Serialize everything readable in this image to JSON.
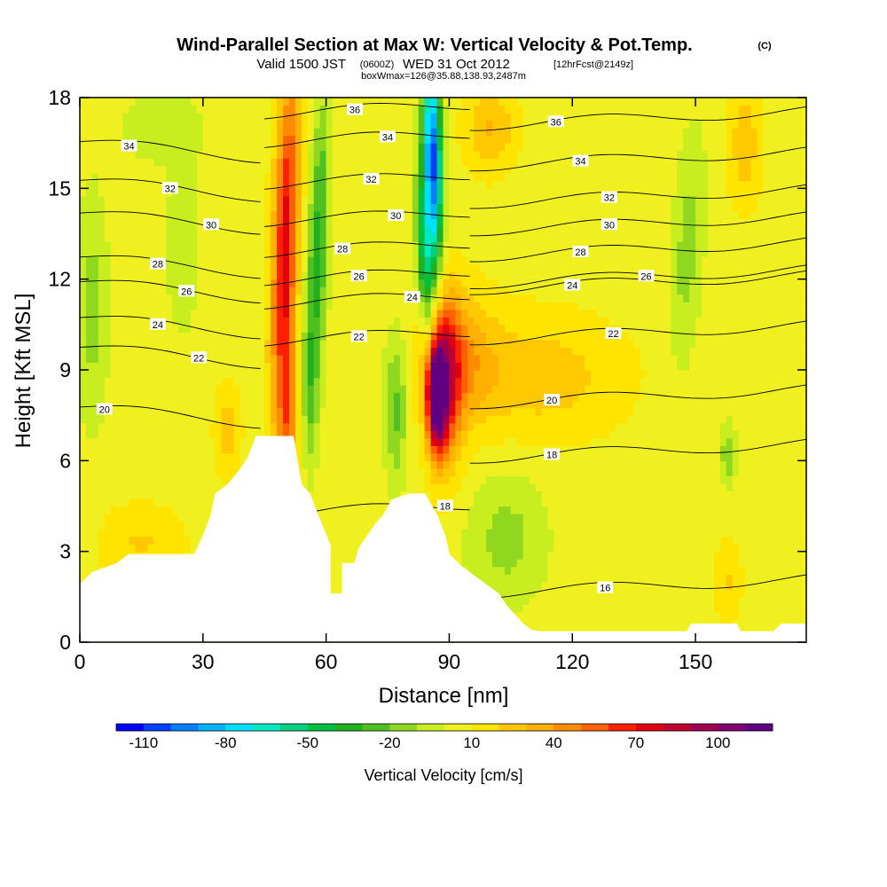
{
  "chart_data": {
    "type": "heatmap",
    "title": "Wind-Parallel Section at Max W: Vertical Velocity & Pot.Temp.",
    "title_mark": "(C)",
    "subtitle_valid": "Valid 1500 JST",
    "subtitle_utc": "(0600Z)",
    "subtitle_date": "WED 31 Oct 2012",
    "subtitle_fcst": "[12hrFcst@2149z]",
    "subtitle_box": "boxWmax=126@35.88,138.93,2487m",
    "xlabel": "Distance [nm]",
    "ylabel": "Height [Kft MSL]",
    "xlim": [
      0,
      177
    ],
    "ylim": [
      0,
      18
    ],
    "x_ticks": [
      "0",
      "30",
      "60",
      "90",
      "120",
      "150"
    ],
    "x_tick_values": [
      0,
      30,
      60,
      90,
      120,
      150
    ],
    "y_ticks": [
      "0",
      "3",
      "6",
      "9",
      "12",
      "15",
      "18"
    ],
    "y_tick_values": [
      0,
      3,
      6,
      9,
      12,
      15,
      18
    ],
    "colorbar": {
      "label": "Vertical Velocity [cm/s]",
      "tick_labels": [
        "-110",
        "-80",
        "-50",
        "-20",
        "10",
        "40",
        "70",
        "100"
      ],
      "tick_values": [
        -110,
        -80,
        -50,
        -20,
        10,
        40,
        70,
        100
      ],
      "range": [
        -120,
        120
      ],
      "colors": [
        "#0000ff",
        "#0040ff",
        "#0080ff",
        "#00b4ff",
        "#00e0ff",
        "#00e8c0",
        "#00d080",
        "#00c040",
        "#20b020",
        "#50c020",
        "#90d820",
        "#c8ee20",
        "#f0f020",
        "#ffe400",
        "#ffc800",
        "#ffb000",
        "#ff8c00",
        "#ff6000",
        "#ff2000",
        "#e00010",
        "#c00030",
        "#a00050",
        "#800070",
        "#600080"
      ]
    },
    "theta_labels": [
      {
        "text": "36",
        "x": 67,
        "y": 17.6
      },
      {
        "text": "34",
        "x": 12,
        "y": 16.4
      },
      {
        "text": "34",
        "x": 75,
        "y": 16.7
      },
      {
        "text": "32",
        "x": 22,
        "y": 15.0
      },
      {
        "text": "32",
        "x": 71,
        "y": 15.3
      },
      {
        "text": "30",
        "x": 32,
        "y": 13.8
      },
      {
        "text": "30",
        "x": 77,
        "y": 14.1
      },
      {
        "text": "28",
        "x": 19,
        "y": 12.5
      },
      {
        "text": "28",
        "x": 64,
        "y": 13.0
      },
      {
        "text": "26",
        "x": 26,
        "y": 11.6
      },
      {
        "text": "26",
        "x": 68,
        "y": 12.1
      },
      {
        "text": "24",
        "x": 19,
        "y": 10.5
      },
      {
        "text": "24",
        "x": 81,
        "y": 11.4
      },
      {
        "text": "22",
        "x": 29,
        "y": 9.4
      },
      {
        "text": "22",
        "x": 68,
        "y": 10.1
      },
      {
        "text": "20",
        "x": 6,
        "y": 7.7
      },
      {
        "text": "36",
        "x": 116,
        "y": 17.2
      },
      {
        "text": "34",
        "x": 122,
        "y": 15.9
      },
      {
        "text": "32",
        "x": 129,
        "y": 14.7
      },
      {
        "text": "30",
        "x": 129,
        "y": 13.8
      },
      {
        "text": "28",
        "x": 122,
        "y": 12.9
      },
      {
        "text": "26",
        "x": 138,
        "y": 12.1
      },
      {
        "text": "24",
        "x": 120,
        "y": 11.8
      },
      {
        "text": "22",
        "x": 130,
        "y": 10.2
      },
      {
        "text": "20",
        "x": 115,
        "y": 8.0
      },
      {
        "text": "18",
        "x": 115,
        "y": 6.2
      },
      {
        "text": "18",
        "x": 89,
        "y": 4.5
      },
      {
        "text": "16",
        "x": 128,
        "y": 1.8
      }
    ],
    "terrain_profile": [
      [
        0,
        1.9
      ],
      [
        3,
        2.3
      ],
      [
        9,
        2.6
      ],
      [
        12,
        2.9
      ],
      [
        18,
        2.9
      ],
      [
        28,
        2.9
      ],
      [
        30,
        3.5
      ],
      [
        32,
        4.2
      ],
      [
        33,
        4.9
      ],
      [
        36,
        5.2
      ],
      [
        39,
        5.7
      ],
      [
        41,
        6.1
      ],
      [
        43,
        6.8
      ],
      [
        52,
        6.8
      ],
      [
        54,
        5.2
      ],
      [
        56,
        4.9
      ],
      [
        58,
        4.2
      ],
      [
        61,
        3.2
      ],
      [
        61,
        1.6
      ],
      [
        64,
        1.6
      ],
      [
        64,
        2.6
      ],
      [
        67,
        2.6
      ],
      [
        68,
        3.1
      ],
      [
        70,
        3.5
      ],
      [
        72,
        3.9
      ],
      [
        74,
        4.2
      ],
      [
        76,
        4.7
      ],
      [
        80,
        4.9
      ],
      [
        84,
        4.9
      ],
      [
        87,
        4.2
      ],
      [
        89,
        3.5
      ],
      [
        90,
        2.9
      ],
      [
        93,
        2.5
      ],
      [
        96,
        2.2
      ],
      [
        99,
        1.9
      ],
      [
        102,
        1.6
      ],
      [
        104,
        1.2
      ],
      [
        106,
        0.9
      ],
      [
        108,
        0.6
      ],
      [
        110,
        0.4
      ],
      [
        112,
        0.35
      ],
      [
        148,
        0.35
      ],
      [
        149,
        0.6
      ],
      [
        160,
        0.6
      ],
      [
        161,
        0.35
      ],
      [
        169,
        0.35
      ],
      [
        171,
        0.6
      ],
      [
        177,
        0.6
      ]
    ],
    "w_features": [
      {
        "value": 70,
        "x": 50,
        "y": 13,
        "dx": 3,
        "dy": 6,
        "tilt": 0.25
      },
      {
        "value": 40,
        "x": 51,
        "y": 7,
        "dx": 2,
        "dy": 3,
        "tilt": 0
      },
      {
        "value": -40,
        "x": 58,
        "y": 13,
        "dx": 2.5,
        "dy": 5,
        "tilt": 0.25
      },
      {
        "value": -20,
        "x": 56,
        "y": 8.5,
        "dx": 2,
        "dy": 2.5,
        "tilt": 0
      },
      {
        "value": -110,
        "x": 86,
        "y": 16,
        "dx": 2.2,
        "dy": 3.5,
        "tilt": -0.15
      },
      {
        "value": -50,
        "x": 84,
        "y": 12.8,
        "dx": 2,
        "dy": 3,
        "tilt": -0.3
      },
      {
        "value": 110,
        "x": 87,
        "y": 8.1,
        "dx": 2.2,
        "dy": 1.6,
        "tilt": 0
      },
      {
        "value": 55,
        "x": 89,
        "y": 8.6,
        "dx": 4,
        "dy": 2.8,
        "tilt": 0
      },
      {
        "value": 30,
        "x": 92,
        "y": 9.4,
        "dx": 9,
        "dy": 2.2,
        "tilt": 0
      },
      {
        "value": 20,
        "x": 112,
        "y": 8.8,
        "dx": 20,
        "dy": 2,
        "tilt": 0
      },
      {
        "value": -30,
        "x": 77,
        "y": 7.8,
        "dx": 3,
        "dy": 2.5,
        "tilt": 0
      },
      {
        "value": -20,
        "x": 104,
        "y": 3.4,
        "dx": 10,
        "dy": 2.2,
        "tilt": 0
      },
      {
        "value": -20,
        "x": 3,
        "y": 11,
        "dx": 4,
        "dy": 4,
        "tilt": 0
      },
      {
        "value": -15,
        "x": 20,
        "y": 17,
        "dx": 10,
        "dy": 1.2,
        "tilt": 0
      },
      {
        "value": 15,
        "x": 15,
        "y": 3.3,
        "dx": 10,
        "dy": 1.2,
        "tilt": 0
      },
      {
        "value": 20,
        "x": 36,
        "y": 7,
        "dx": 3,
        "dy": 1.5,
        "tilt": 0
      },
      {
        "value": 25,
        "x": 100,
        "y": 17,
        "dx": 6,
        "dy": 1.4,
        "tilt": 0
      },
      {
        "value": 20,
        "x": 162,
        "y": 16.5,
        "dx": 4,
        "dy": 2,
        "tilt": 0
      },
      {
        "value": -20,
        "x": 148,
        "y": 13,
        "dx": 4,
        "dy": 4,
        "tilt": 0.4
      },
      {
        "value": -25,
        "x": 158,
        "y": 6.2,
        "dx": 2,
        "dy": 1,
        "tilt": 0
      },
      {
        "value": 15,
        "x": 158,
        "y": 2,
        "dx": 3,
        "dy": 1.3,
        "tilt": 0
      },
      {
        "value": -15,
        "x": 25,
        "y": 13,
        "dx": 4,
        "dy": 3,
        "tilt": 0
      }
    ]
  }
}
